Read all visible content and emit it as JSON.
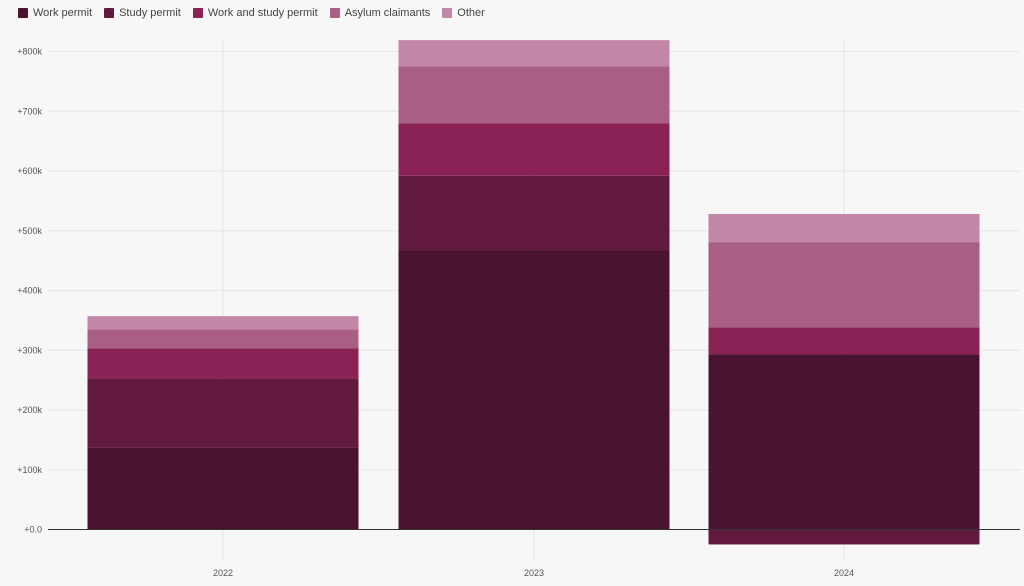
{
  "chart_data": {
    "type": "bar",
    "stacked": true,
    "categories": [
      "2022",
      "2023",
      "2024"
    ],
    "series": [
      {
        "name": "Work permit",
        "color": "#4a1430",
        "values": [
          137000,
          467000,
          293000
        ]
      },
      {
        "name": "Study permit",
        "color": "#61193d",
        "values": [
          116000,
          125000,
          -25000
        ]
      },
      {
        "name": "Work and study permit",
        "color": "#8a2256",
        "values": [
          50000,
          88000,
          45000
        ]
      },
      {
        "name": "Asylum claimants",
        "color": "#a85f83",
        "values": [
          32000,
          95000,
          143000
        ]
      },
      {
        "name": "Other",
        "color": "#c286a6",
        "values": [
          22000,
          44000,
          47000
        ]
      }
    ],
    "y_ticks": [
      "+0.0",
      "+100k",
      "+200k",
      "+300k",
      "+400k",
      "+500k",
      "+600k",
      "+700k",
      "+800k"
    ],
    "ylim": [
      -40000,
      820000
    ],
    "grid": true,
    "legend_position": "top-left"
  }
}
